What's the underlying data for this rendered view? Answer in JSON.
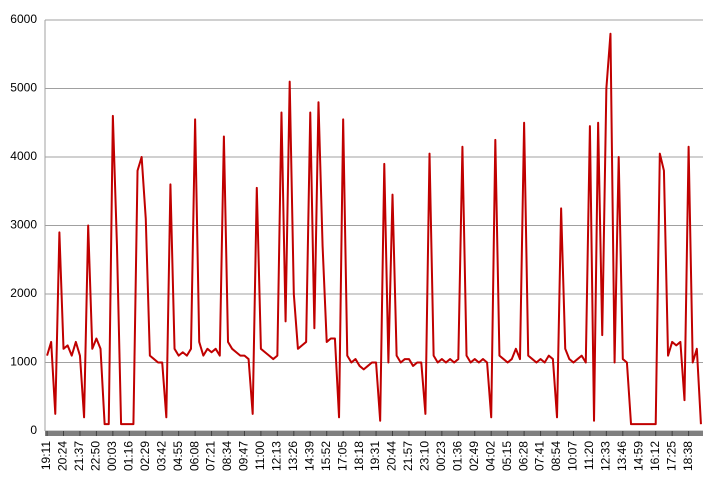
{
  "chart_data": {
    "type": "line",
    "categories": [
      "19:11",
      null,
      null,
      null,
      "20:24",
      null,
      null,
      null,
      "21:37",
      null,
      null,
      null,
      "22:50",
      null,
      null,
      null,
      "00:03",
      null,
      null,
      null,
      "01:16",
      null,
      null,
      null,
      "02:29",
      null,
      null,
      null,
      "03:42",
      null,
      null,
      null,
      "04:55",
      null,
      null,
      null,
      "06:08",
      null,
      null,
      null,
      "07:21",
      null,
      null,
      null,
      "08:34",
      null,
      null,
      null,
      "09:47",
      null,
      null,
      null,
      "11:00",
      null,
      null,
      null,
      "12:13",
      null,
      null,
      null,
      "13:26",
      null,
      null,
      null,
      "14:39",
      null,
      null,
      null,
      "15:52",
      null,
      null,
      null,
      "17:05",
      null,
      null,
      null,
      "18:18",
      null,
      null,
      null,
      "19:31",
      null,
      null,
      null,
      "20:44",
      null,
      null,
      null,
      "21:57",
      null,
      null,
      null,
      "23:10",
      null,
      null,
      null,
      "00:23",
      null,
      null,
      null,
      "01:36",
      null,
      null,
      null,
      "02:49",
      null,
      null,
      null,
      "04:02",
      null,
      null,
      null,
      "05:15",
      null,
      null,
      null,
      "06:28",
      null,
      null,
      null,
      "07:41",
      null,
      null,
      null,
      "08:54",
      null,
      null,
      null,
      "10:07",
      null,
      null,
      null,
      "11:20",
      null,
      null,
      null,
      "12:33",
      null,
      null,
      null,
      "13:46",
      null,
      null,
      null,
      "14:59",
      null,
      null,
      null,
      "16:12",
      null,
      null,
      null,
      "17:25",
      null,
      null,
      null,
      "18:38",
      null,
      null,
      null
    ],
    "series": [
      {
        "color": "#c00000",
        "values": [
          1100,
          1300,
          250,
          2900,
          1200,
          1250,
          1100,
          1300,
          1100,
          200,
          3000,
          1200,
          1350,
          1200,
          100,
          100,
          4600,
          2700,
          100,
          100,
          100,
          100,
          3800,
          4000,
          3100,
          1100,
          1050,
          1000,
          1000,
          200,
          3600,
          1200,
          1100,
          1150,
          1100,
          1200,
          4550,
          1300,
          1100,
          1200,
          1150,
          1200,
          1100,
          4300,
          1300,
          1200,
          1150,
          1100,
          1100,
          1050,
          250,
          3550,
          1200,
          1150,
          1100,
          1050,
          1100,
          4650,
          1600,
          5100,
          2000,
          1200,
          1250,
          1300,
          4650,
          1500,
          4800,
          2700,
          1300,
          1350,
          1350,
          200,
          4550,
          1100,
          1000,
          1050,
          950,
          900,
          950,
          1000,
          1000,
          150,
          3900,
          1000,
          3450,
          1100,
          1000,
          1050,
          1050,
          950,
          1000,
          1000,
          250,
          4050,
          1100,
          1000,
          1050,
          1000,
          1050,
          1000,
          1050,
          4150,
          1100,
          1000,
          1050,
          1000,
          1050,
          1000,
          200,
          4250,
          1100,
          1050,
          1000,
          1050,
          1200,
          1050,
          4500,
          1100,
          1050,
          1000,
          1050,
          1000,
          1100,
          1050,
          200,
          3250,
          1200,
          1050,
          1000,
          1050,
          1100,
          1000,
          4450,
          150,
          4500,
          1400,
          5000,
          5800,
          1000,
          4000,
          1050,
          1000,
          100,
          100,
          100,
          100,
          100,
          100,
          100,
          4050,
          3800,
          1100,
          1300,
          1250,
          1300,
          450,
          4150,
          1000,
          1200,
          100
        ]
      }
    ],
    "ylim": [
      0,
      6000
    ],
    "yticks": [
      0,
      1000,
      2000,
      3000,
      4000,
      5000,
      6000
    ],
    "grid": true
  }
}
